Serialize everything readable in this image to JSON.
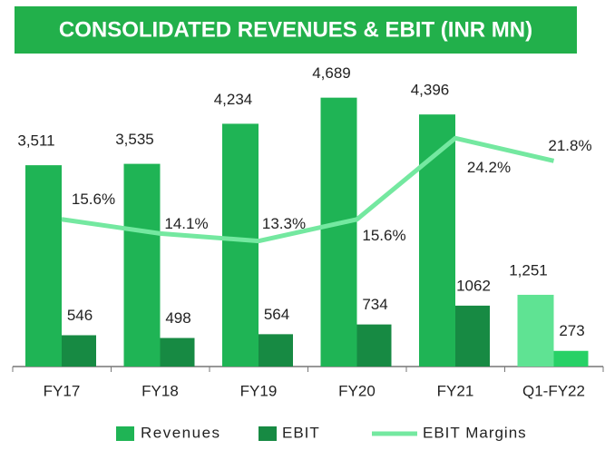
{
  "chart_data": {
    "type": "bar",
    "title": "CONSOLIDATED REVENUES & EBIT (INR MN)",
    "categories": [
      "FY17",
      "FY18",
      "FY19",
      "FY20",
      "FY21",
      "Q1-FY22"
    ],
    "series": [
      {
        "name": "Revenues",
        "colors": [
          "#1fb455",
          "#1fb455",
          "#1fb455",
          "#1fb455",
          "#1fb455",
          "#5fe393"
        ],
        "values": [
          3511,
          3535,
          4234,
          4689,
          4396,
          1251
        ],
        "value_labels": [
          "3,511",
          "3,535",
          "4,234",
          "4,689",
          "4,396",
          "1,251"
        ]
      },
      {
        "name": "EBIT",
        "colors": [
          "#178a43",
          "#178a43",
          "#178a43",
          "#178a43",
          "#178a43",
          "#27d166"
        ],
        "values": [
          546,
          498,
          564,
          734,
          1062,
          273
        ]
      },
      {
        "name": "EBIT Margins",
        "type": "line",
        "axis": "y2",
        "color": "#74e8a0",
        "values": [
          15.6,
          14.1,
          13.3,
          15.6,
          24.2,
          21.8
        ],
        "value_labels": [
          "15.6%",
          "14.1%",
          "13.3%",
          "15.6%",
          "24.2%",
          "21.8%"
        ]
      }
    ]
  }
}
